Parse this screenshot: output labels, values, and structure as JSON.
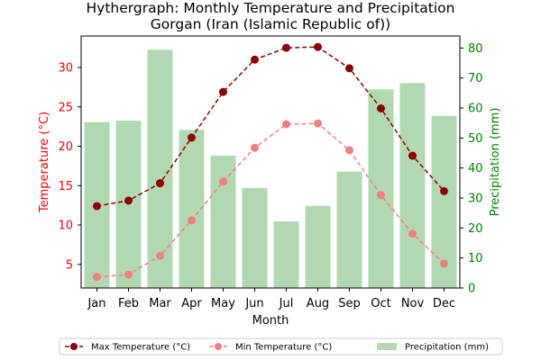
{
  "chart_data": {
    "type": "bar+line",
    "title": "Hythergraph: Monthly Temperature and Precipitation",
    "subtitle": "Gorgan (Iran (Islamic Republic of))",
    "xlabel": "Month",
    "ylabel_left": "Temperature (°C)",
    "ylabel_right": "Precipitation (mm)",
    "categories": [
      "Jan",
      "Feb",
      "Mar",
      "Apr",
      "May",
      "Jun",
      "Jul",
      "Aug",
      "Sep",
      "Oct",
      "Nov",
      "Dec"
    ],
    "ylim_left": [
      2.0,
      34.0
    ],
    "ylim_right": [
      0,
      84
    ],
    "yticks_left": [
      5,
      10,
      15,
      20,
      25,
      30
    ],
    "yticks_right": [
      0,
      10,
      20,
      30,
      40,
      50,
      60,
      70,
      80
    ],
    "series": [
      {
        "name": "Max Temperature (°C)",
        "axis": "left",
        "kind": "line",
        "color": "#8b0000",
        "values": [
          12.4,
          13.1,
          15.3,
          21.1,
          26.9,
          31.0,
          32.5,
          32.6,
          29.9,
          24.8,
          18.8,
          14.3
        ]
      },
      {
        "name": "Min Temperature (°C)",
        "axis": "left",
        "kind": "line",
        "color": "#f08080",
        "values": [
          3.4,
          3.7,
          6.1,
          10.6,
          15.5,
          19.8,
          22.8,
          22.9,
          19.5,
          13.8,
          8.9,
          5.1
        ]
      },
      {
        "name": "Precipitation (mm)",
        "axis": "right",
        "kind": "bar",
        "color": "#b2d8b2",
        "values": [
          55.3,
          55.8,
          79.4,
          52.7,
          44.1,
          33.3,
          22.2,
          27.4,
          38.8,
          66.2,
          68.3,
          57.3
        ]
      }
    ],
    "legend_position": "bottom-center",
    "grid": false,
    "colors": {
      "left_axis": "#ff0000",
      "right_axis": "#008000"
    }
  }
}
